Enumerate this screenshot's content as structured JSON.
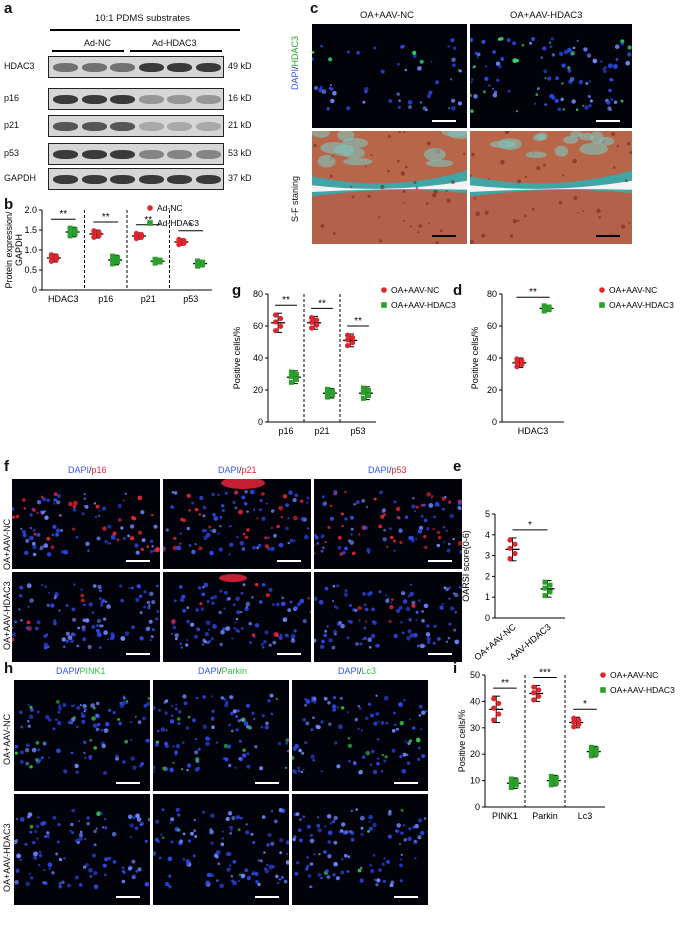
{
  "panel_letters": {
    "a": "a",
    "b": "b",
    "c": "c",
    "d": "d",
    "e": "e",
    "f": "f",
    "g": "g",
    "h": "h",
    "i": "i"
  },
  "panel_a": {
    "header": "10:1 PDMS substrates",
    "group_nc": "Ad-NC",
    "group_hdac3": "Ad-HDAC3",
    "rows": [
      {
        "protein": "HDAC3",
        "kd": "49 kD",
        "nc_intensity": 0.55,
        "hdac3_intensity": 0.85
      },
      {
        "protein": "p16",
        "kd": "16 kD",
        "nc_intensity": 0.85,
        "hdac3_intensity": 0.35
      },
      {
        "protein": "p21",
        "kd": "21 kD",
        "nc_intensity": 0.7,
        "hdac3_intensity": 0.25
      },
      {
        "protein": "p53",
        "kd": "53 kD",
        "nc_intensity": 0.85,
        "hdac3_intensity": 0.45
      },
      {
        "protein": "GAPDH",
        "kd": "37 kD",
        "nc_intensity": 0.85,
        "hdac3_intensity": 0.85
      }
    ]
  },
  "panel_c": {
    "col_nc": "OA+AAV-NC",
    "col_hdac3": "OA+AAV-HDAC3",
    "row1_label_dapi": "DAPI",
    "row1_label_sep": "/",
    "row1_label_marker": "HDAC3",
    "row2_label": "S-F staning"
  },
  "panel_f": {
    "stain_dapi": "DAPI",
    "sep": "/",
    "markers": [
      "p16",
      "p21",
      "p53"
    ],
    "row_nc": "OA+AAV-NC",
    "row_hdac3": "OA+AAV-HDAC3"
  },
  "panel_h": {
    "stain_dapi": "DAPI",
    "sep": "/",
    "markers": [
      "PINK1",
      "Parkin",
      "Lc3"
    ],
    "row_nc": "OA+AAV-NC",
    "row_hdac3": "OA+AAV-HDAC3"
  },
  "colors": {
    "nc": "#e0262c",
    "hdac3": "#2ca02c",
    "dapi": "#3355ff",
    "marker_red": "#e8233a",
    "marker_green": "#34c24a"
  },
  "chart_data": [
    {
      "id": "b",
      "type": "scatter",
      "ylabel": "Protein expression/ GAPDH",
      "xlabel": "",
      "ylim": [
        0,
        2.0
      ],
      "yticks": [
        "0",
        "0.5",
        "1.0",
        "1.5",
        "2.0"
      ],
      "categories": [
        "HDAC3",
        "p16",
        "p21",
        "p53"
      ],
      "series": [
        {
          "name": "Ad-NC",
          "means": [
            0.8,
            1.4,
            1.35,
            1.2
          ],
          "sd": [
            0.1,
            0.1,
            0.08,
            0.08
          ]
        },
        {
          "name": "Ad-HDAC3",
          "means": [
            1.45,
            0.75,
            0.72,
            0.66
          ],
          "sd": [
            0.12,
            0.12,
            0.06,
            0.08
          ]
        }
      ],
      "significance": [
        "**",
        "**",
        "**",
        "*"
      ],
      "legend": "top-right",
      "dashed_separators": true
    },
    {
      "id": "g",
      "type": "scatter",
      "ylabel": "Positive cells/%",
      "xlabel": "",
      "ylim": [
        0,
        80
      ],
      "yticks": [
        "0",
        "20",
        "40",
        "60",
        "80"
      ],
      "categories": [
        "p16",
        "p21",
        "p53"
      ],
      "series": [
        {
          "name": "OA+AAV-NC",
          "means": [
            62,
            62,
            51
          ],
          "sd": [
            6,
            4,
            4
          ]
        },
        {
          "name": "OA+AAV-HDAC3",
          "means": [
            28,
            18,
            18
          ],
          "sd": [
            4,
            3,
            4
          ]
        }
      ],
      "significance": [
        "**",
        "**",
        "**"
      ],
      "legend": "top-right",
      "dashed_separators": true
    },
    {
      "id": "d",
      "type": "scatter",
      "ylabel": "Positive cells/%",
      "xlabel": "",
      "ylim": [
        0,
        80
      ],
      "yticks": [
        "0",
        "20",
        "40",
        "60",
        "80"
      ],
      "categories": [
        "HDAC3"
      ],
      "series": [
        {
          "name": "OA+AAV-NC",
          "means": [
            37
          ],
          "sd": [
            3
          ]
        },
        {
          "name": "OA+AAV-HDAC3",
          "means": [
            71
          ],
          "sd": [
            2
          ]
        }
      ],
      "significance": [
        "**"
      ],
      "legend": "top-right",
      "dashed_separators": false
    },
    {
      "id": "e",
      "type": "scatter",
      "ylabel": "OARSI score(0-6)",
      "xlabel": "",
      "ylim": [
        0,
        5
      ],
      "yticks": [
        "0",
        "1",
        "2",
        "3",
        "4",
        "5"
      ],
      "categories": [
        "OA+AAV-NC",
        "OA+AAV-HDAC3"
      ],
      "series": [
        {
          "name": "OA+AAV-NC",
          "means": [
            3.3
          ],
          "sd": [
            0.55
          ]
        },
        {
          "name": "OA+AAV-HDAC3",
          "means": [
            1.4
          ],
          "sd": [
            0.4
          ]
        }
      ],
      "significance": [
        "*"
      ],
      "legend": "none",
      "dashed_separators": false
    },
    {
      "id": "i",
      "type": "scatter",
      "ylabel": "Positive cells/%",
      "xlabel": "",
      "ylim": [
        0,
        50
      ],
      "yticks": [
        "0",
        "10",
        "20",
        "30",
        "40",
        "50"
      ],
      "categories": [
        "PINK1",
        "Parkin",
        "Lc3"
      ],
      "series": [
        {
          "name": "OA+AAV-NC",
          "means": [
            37,
            43,
            32
          ],
          "sd": [
            5,
            3,
            2
          ]
        },
        {
          "name": "OA+AAV-HDAC3",
          "means": [
            9,
            10,
            21
          ],
          "sd": [
            2,
            2,
            2
          ]
        }
      ],
      "significance": [
        "**",
        "***",
        "*"
      ],
      "legend": "top-right",
      "dashed_separators": true
    }
  ]
}
